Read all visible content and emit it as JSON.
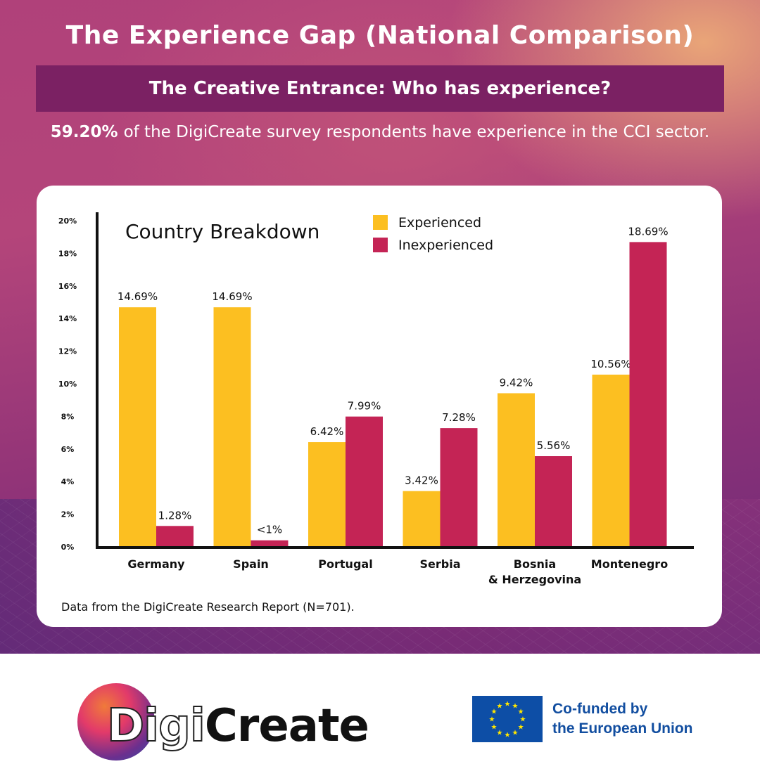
{
  "header": {
    "title": "The Experience Gap (National Comparison)",
    "subtitle": "The Creative Entrance: Who has experience?",
    "stat_highlight": "59.20%",
    "stat_text": "of the DigiCreate survey respondents have experience in the CCI sector."
  },
  "colors": {
    "experienced": "#fcbf21",
    "inexperienced": "#c42455",
    "subtitle_bg": "#7b2163",
    "axis": "#111111"
  },
  "chart_data": {
    "type": "bar",
    "title": "Country Breakdown",
    "xlabel": "",
    "ylabel": "",
    "categories": [
      "Germany",
      "Spain",
      "Portugal",
      "Serbia",
      "Bosnia & Herzegovina",
      "Montenegro"
    ],
    "category_lines": [
      [
        "Germany"
      ],
      [
        "Spain"
      ],
      [
        "Portugal"
      ],
      [
        "Serbia"
      ],
      [
        "Bosnia",
        "& Herzegovina"
      ],
      [
        "Montenegro"
      ]
    ],
    "series": [
      {
        "name": "Experienced",
        "values": [
          14.69,
          14.69,
          6.42,
          3.42,
          9.42,
          10.56
        ],
        "labels": [
          "14.69%",
          "14.69%",
          "6.42%",
          "3.42%",
          "9.42%",
          "10.56%"
        ]
      },
      {
        "name": "Inexperienced",
        "values": [
          1.28,
          0.4,
          7.99,
          7.28,
          5.56,
          18.69
        ],
        "labels": [
          "1.28%",
          "<1%",
          "7.99%",
          "7.28%",
          "5.56%",
          "18.69%"
        ]
      }
    ],
    "ylim": [
      0,
      20
    ],
    "yticks": [
      0,
      2,
      4,
      6,
      8,
      10,
      12,
      14,
      16,
      18,
      20
    ],
    "ytick_labels": [
      "0%",
      "2%",
      "4%",
      "6%",
      "8%",
      "10%",
      "12%",
      "14%",
      "16%",
      "18%",
      "20%"
    ],
    "grid": false,
    "legend": "top-center",
    "source": "Data from the DigiCreate Research Report (N=701)."
  },
  "footer": {
    "logo_part1": "Digi",
    "logo_part2": "Create",
    "eu_line1": "Co-funded by",
    "eu_line2": "the European Union"
  }
}
